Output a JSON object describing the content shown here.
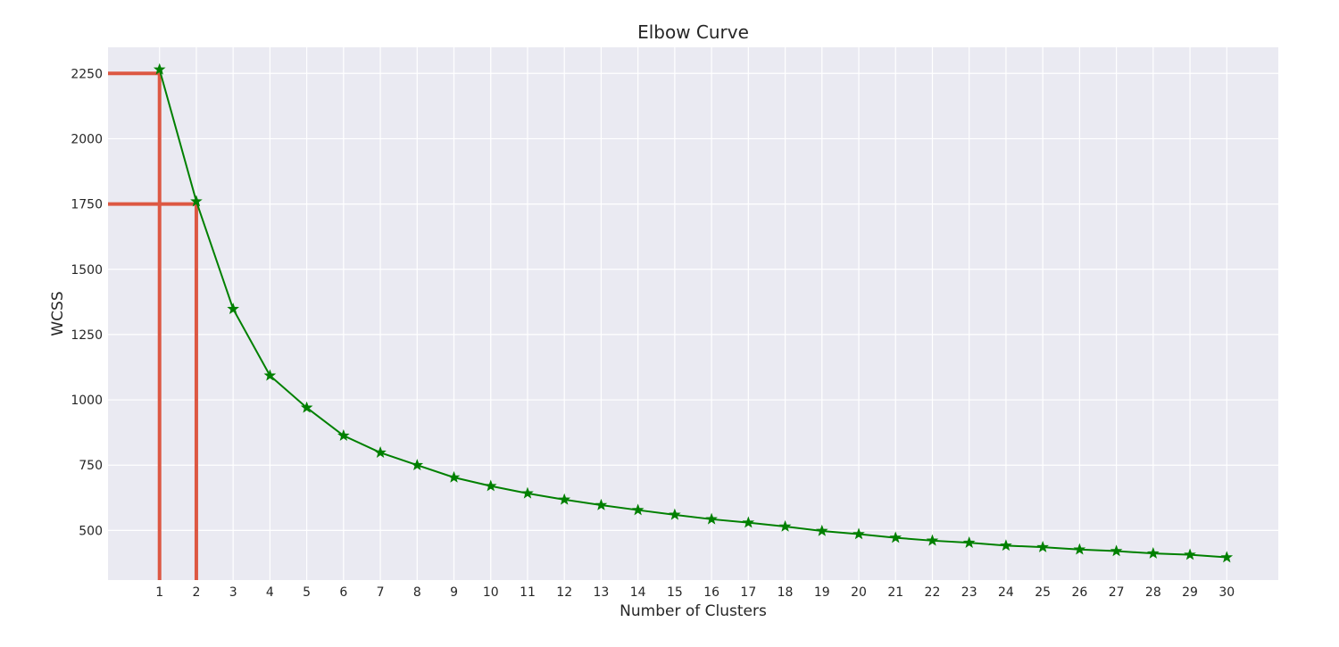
{
  "chart_data": {
    "type": "line",
    "title": "Elbow Curve",
    "xlabel": "Number of Clusters",
    "ylabel": "WCSS",
    "x": [
      1,
      2,
      3,
      4,
      5,
      6,
      7,
      8,
      9,
      10,
      11,
      12,
      13,
      14,
      15,
      16,
      17,
      18,
      19,
      20,
      21,
      22,
      23,
      24,
      25,
      26,
      27,
      28,
      29,
      30
    ],
    "series": [
      {
        "values": [
          2265,
          1760,
          1348,
          1093,
          970,
          863,
          798,
          750,
          703,
          670,
          642,
          618,
          597,
          578,
          560,
          543,
          530,
          515,
          498,
          486,
          472,
          461,
          453,
          442,
          436,
          427,
          421,
          412,
          407,
          397
        ],
        "color": "#008000",
        "marker": "star"
      }
    ],
    "xticks": [
      1,
      2,
      3,
      4,
      5,
      6,
      7,
      8,
      9,
      10,
      11,
      12,
      13,
      14,
      15,
      16,
      17,
      18,
      19,
      20,
      21,
      22,
      23,
      24,
      25,
      26,
      27,
      28,
      29,
      30
    ],
    "yticks": [
      500,
      750,
      1000,
      1250,
      1500,
      1750,
      2000,
      2250
    ],
    "xlim": [
      -0.4,
      31.4
    ],
    "ylim": [
      310,
      2350
    ],
    "grid": true,
    "background": "#eaeaf2",
    "gridcolor": "#ffffff",
    "annotations": [
      {
        "type": "guide-lines",
        "x": 1,
        "y": 2250,
        "color": "#dd5843"
      },
      {
        "type": "guide-lines",
        "x": 2,
        "y": 1750,
        "color": "#dd5843"
      }
    ]
  }
}
